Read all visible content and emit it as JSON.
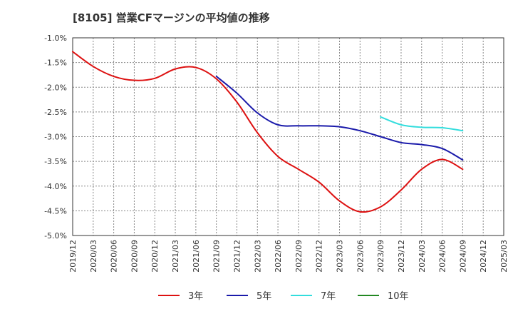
{
  "chart_data": {
    "type": "line",
    "title": "[8105]  営業CFマージンの平均値の推移",
    "xlabel": "",
    "ylabel": "",
    "x_ticks": [
      "2019/12",
      "2020/03",
      "2020/06",
      "2020/09",
      "2020/12",
      "2021/03",
      "2021/06",
      "2021/09",
      "2021/12",
      "2022/03",
      "2022/06",
      "2022/09",
      "2022/12",
      "2023/03",
      "2023/06",
      "2023/09",
      "2023/12",
      "2024/03",
      "2024/06",
      "2024/09",
      "2024/12",
      "2025/03"
    ],
    "y_ticks": [
      "-1.0%",
      "-1.5%",
      "-2.0%",
      "-2.5%",
      "-3.0%",
      "-3.5%",
      "-4.0%",
      "-4.5%",
      "-5.0%"
    ],
    "ylim": [
      -5.0,
      -1.0
    ],
    "grid": true,
    "legend_position": "bottom",
    "series": [
      {
        "name": "3年",
        "color": "#dd1111",
        "x": [
          "2019/12",
          "2020/03",
          "2020/06",
          "2020/09",
          "2020/12",
          "2021/03",
          "2021/06",
          "2021/09",
          "2021/12",
          "2022/03",
          "2022/06",
          "2022/09",
          "2022/12",
          "2023/03",
          "2023/06",
          "2023/09",
          "2023/12",
          "2024/03",
          "2024/06",
          "2024/09"
        ],
        "values": [
          -1.28,
          -1.58,
          -1.78,
          -1.86,
          -1.82,
          -1.63,
          -1.6,
          -1.83,
          -2.3,
          -2.92,
          -3.4,
          -3.66,
          -3.92,
          -4.3,
          -4.52,
          -4.42,
          -4.08,
          -3.66,
          -3.46,
          -3.66
        ]
      },
      {
        "name": "5年",
        "color": "#1a1aaa",
        "x": [
          "2021/09",
          "2021/12",
          "2022/03",
          "2022/06",
          "2022/09",
          "2022/12",
          "2023/03",
          "2023/06",
          "2023/09",
          "2023/12",
          "2024/03",
          "2024/06",
          "2024/09"
        ],
        "values": [
          -1.78,
          -2.12,
          -2.52,
          -2.76,
          -2.78,
          -2.78,
          -2.8,
          -2.88,
          -3.0,
          -3.12,
          -3.16,
          -3.24,
          -3.47
        ]
      },
      {
        "name": "7年",
        "color": "#33dddd",
        "x": [
          "2023/09",
          "2023/12",
          "2024/03",
          "2024/06",
          "2024/09"
        ],
        "values": [
          -2.6,
          -2.76,
          -2.81,
          -2.82,
          -2.88
        ]
      },
      {
        "name": "10年",
        "color": "#228822",
        "x": [],
        "values": []
      }
    ]
  }
}
